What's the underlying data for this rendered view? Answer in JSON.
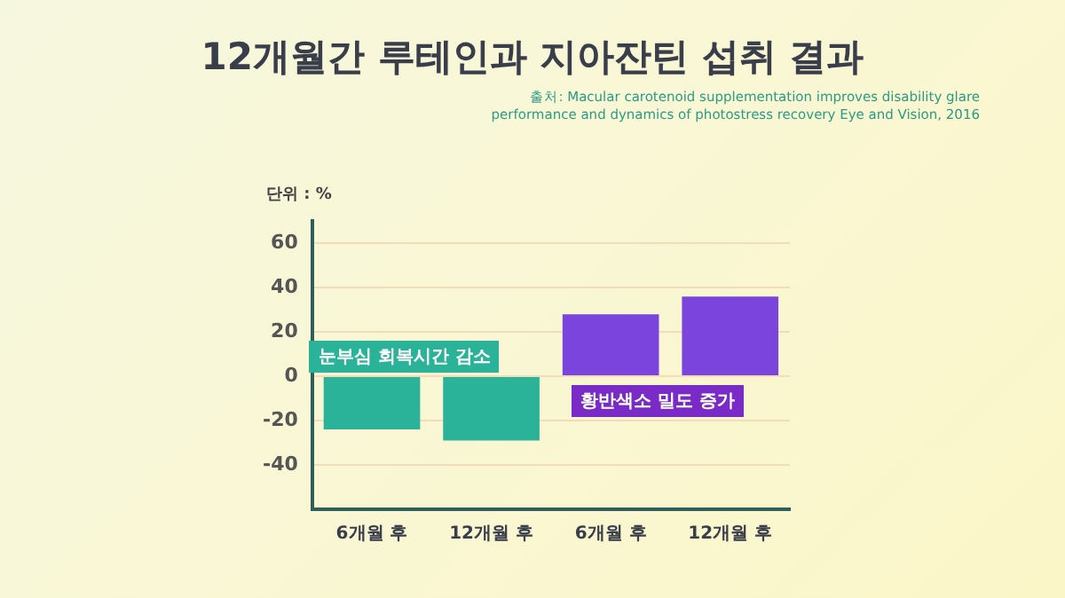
{
  "chart_data": {
    "type": "bar",
    "title": "12개월간 루테인과 지아잔틴 섭취 결과",
    "ylabel": "단위 : %",
    "annotations": [
      "출처: Macular carotenoid supplementation improves disability glare performance and dynamics of photostress recovery Eye and Vision, 2016",
      "눈부심 회복시간 감소",
      "황반색소 밀도 증가"
    ],
    "categories": [
      "6개월 후",
      "12개월 후",
      "6개월 후",
      "12개월 후"
    ],
    "values": [
      -24,
      -29,
      28,
      36
    ],
    "colors": [
      "#2bb39a",
      "#2bb39a",
      "#7b45dd",
      "#7b45dd"
    ],
    "ylim": [
      -60,
      70
    ],
    "yticks": [
      -40,
      -20,
      0,
      20,
      40,
      60
    ],
    "grid": "y"
  }
}
